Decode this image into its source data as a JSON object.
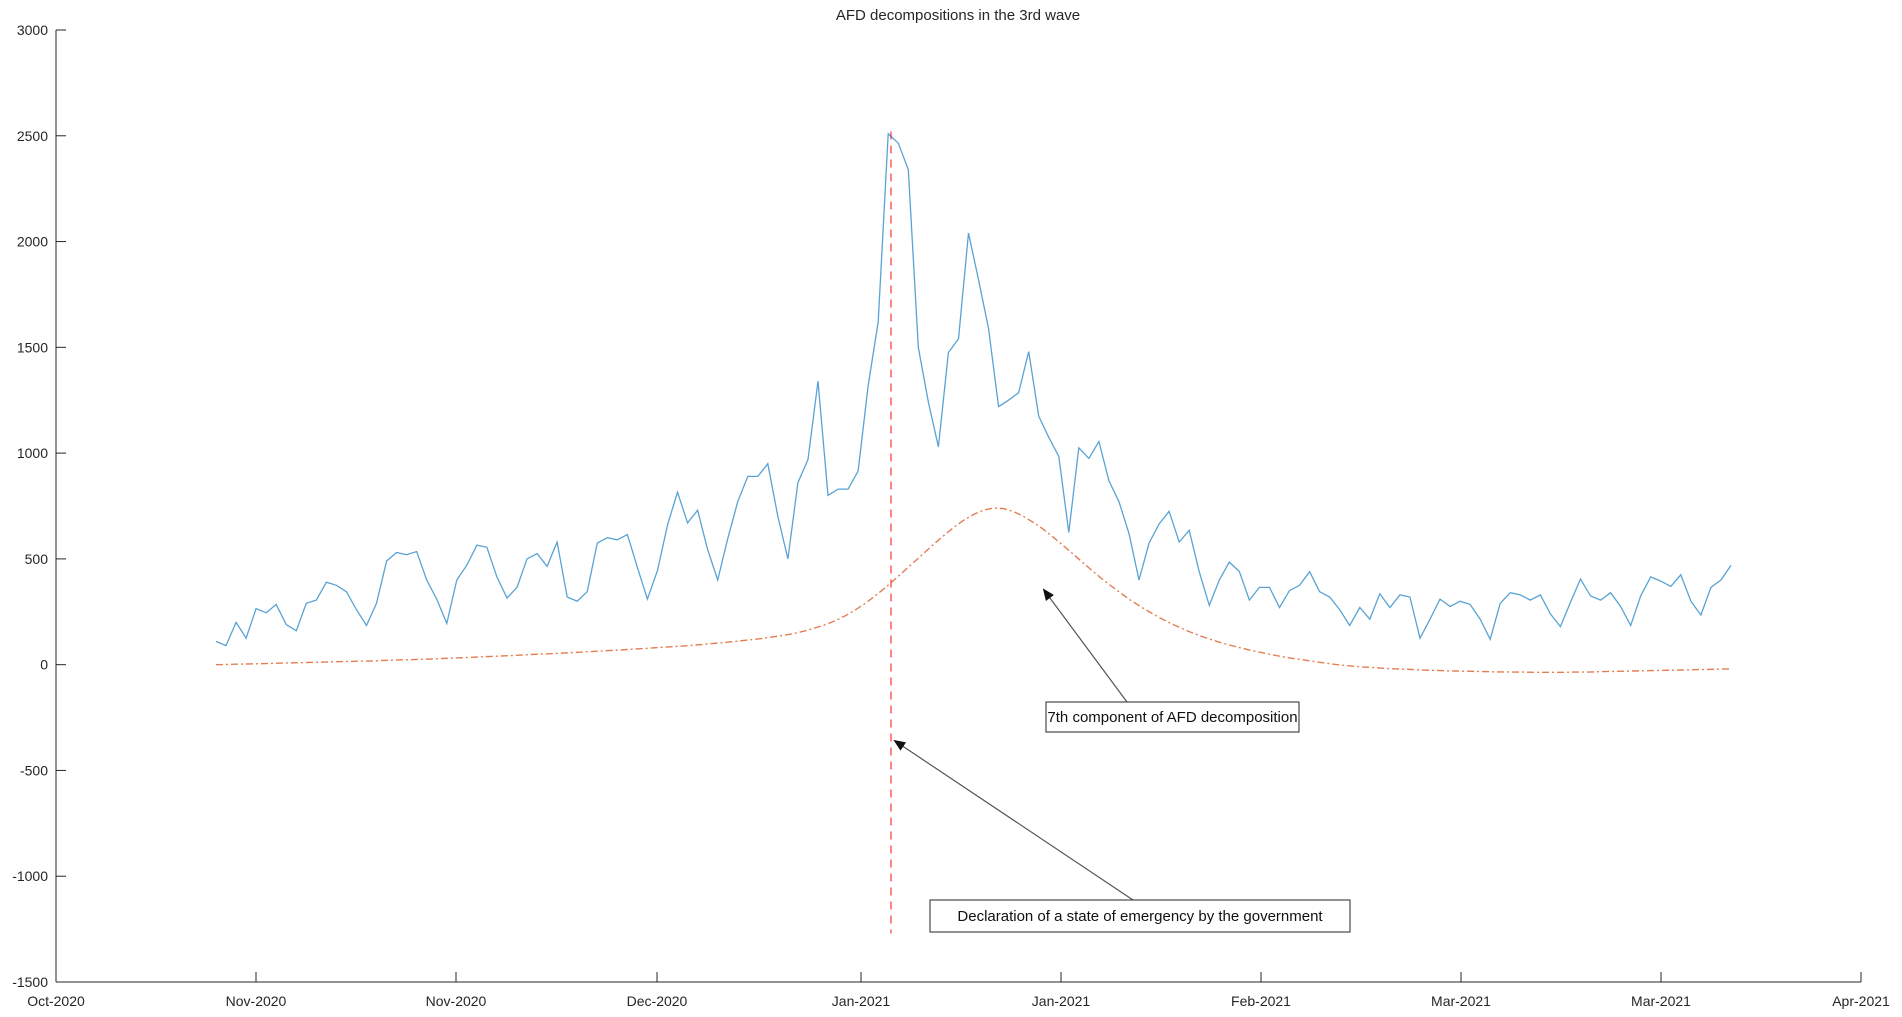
{
  "chart_data": {
    "type": "line",
    "title": "AFD decompositions in the 3rd wave",
    "xlabel": "",
    "ylabel": "",
    "ylim": [
      -1500,
      3000
    ],
    "yticks": [
      -1500,
      -1000,
      -500,
      0,
      500,
      1000,
      1500,
      2000,
      2500,
      3000
    ],
    "x_axis_unit": "days",
    "x_tick_labels": [
      "Oct-2020",
      "Nov-2020",
      "Nov-2020",
      "Dec-2020",
      "Jan-2021",
      "Jan-2021",
      "Feb-2021",
      "Mar-2021",
      "Mar-2021",
      "Apr-2021"
    ],
    "grid": false,
    "legend": "none",
    "colors": {
      "series1": "#0072BD",
      "series2": "#D95319",
      "vline": "#ff0000",
      "annotation": "#262626"
    },
    "series": [
      {
        "style": "solid",
        "values": [
          110,
          90,
          200,
          125,
          265,
          245,
          285,
          190,
          160,
          290,
          305,
          390,
          375,
          345,
          260,
          185,
          290,
          490,
          530,
          520,
          535,
          400,
          310,
          195,
          400,
          470,
          565,
          555,
          415,
          315,
          365,
          500,
          525,
          465,
          580,
          320,
          300,
          345,
          575,
          600,
          590,
          615,
          460,
          310,
          445,
          660,
          815,
          670,
          730,
          545,
          400,
          595,
          770,
          890,
          890,
          950,
          700,
          500,
          860,
          970,
          1340,
          800,
          830,
          830,
          915,
          1320,
          1620,
          2510,
          2465,
          2340,
          1500,
          1240,
          1030,
          1475,
          1540,
          2040,
          1820,
          1590,
          1220,
          1250,
          1285,
          1480,
          1175,
          1075,
          985,
          625,
          1025,
          975,
          1055,
          870,
          770,
          620,
          400,
          575,
          665,
          725,
          580,
          635,
          440,
          280,
          400,
          485,
          440,
          305,
          365,
          365,
          270,
          350,
          375,
          440,
          345,
          320,
          260,
          185,
          270,
          215,
          335,
          270,
          330,
          320,
          125,
          215,
          310,
          275,
          300,
          285,
          215,
          120,
          290,
          340,
          330,
          305,
          330,
          240,
          180,
          295,
          405,
          325,
          305,
          340,
          275,
          185,
          325,
          415,
          395,
          370,
          425,
          300,
          235,
          365,
          400,
          470
        ]
      },
      {
        "style": "dash-dot",
        "values": [
          0,
          1,
          2,
          3,
          4,
          5,
          7,
          8,
          9,
          10,
          11,
          12,
          14,
          15,
          16,
          17,
          18,
          20,
          21,
          23,
          24,
          26,
          27,
          29,
          31,
          33,
          35,
          37,
          39,
          41,
          43,
          45,
          48,
          50,
          52,
          54,
          57,
          59,
          62,
          64,
          67,
          69,
          72,
          75,
          78,
          81,
          84,
          87,
          90,
          94,
          98,
          102,
          106,
          111,
          116,
          121,
          127,
          134,
          141,
          150,
          161,
          175,
          190,
          209,
          232,
          259,
          290,
          325,
          363,
          403,
          445,
          487,
          529,
          571,
          611,
          649,
          683,
          710,
          730,
          740,
          738,
          725,
          703,
          675,
          643,
          607,
          568,
          528,
          487,
          447,
          408,
          372,
          337,
          304,
          274,
          246,
          220,
          196,
          175,
          155,
          137,
          121,
          106,
          93,
          81,
          70,
          60,
          50,
          41,
          33,
          26,
          19,
          12,
          6,
          0,
          -5,
          -9,
          -12,
          -15,
          -18,
          -20,
          -22,
          -24,
          -26,
          -27,
          -29,
          -30,
          -31,
          -32,
          -33,
          -34,
          -34,
          -35,
          -35,
          -36,
          -36,
          -36,
          -36,
          -35,
          -35,
          -34,
          -33,
          -32,
          -31,
          -30,
          -29,
          -28,
          -27,
          -26,
          -25,
          -24,
          -23,
          -22,
          -21,
          -20
        ]
      }
    ],
    "annotations": [
      {
        "text": "7th component of AFD decomposition"
      },
      {
        "text": "Declaration of a state of emergency by the government"
      }
    ]
  }
}
